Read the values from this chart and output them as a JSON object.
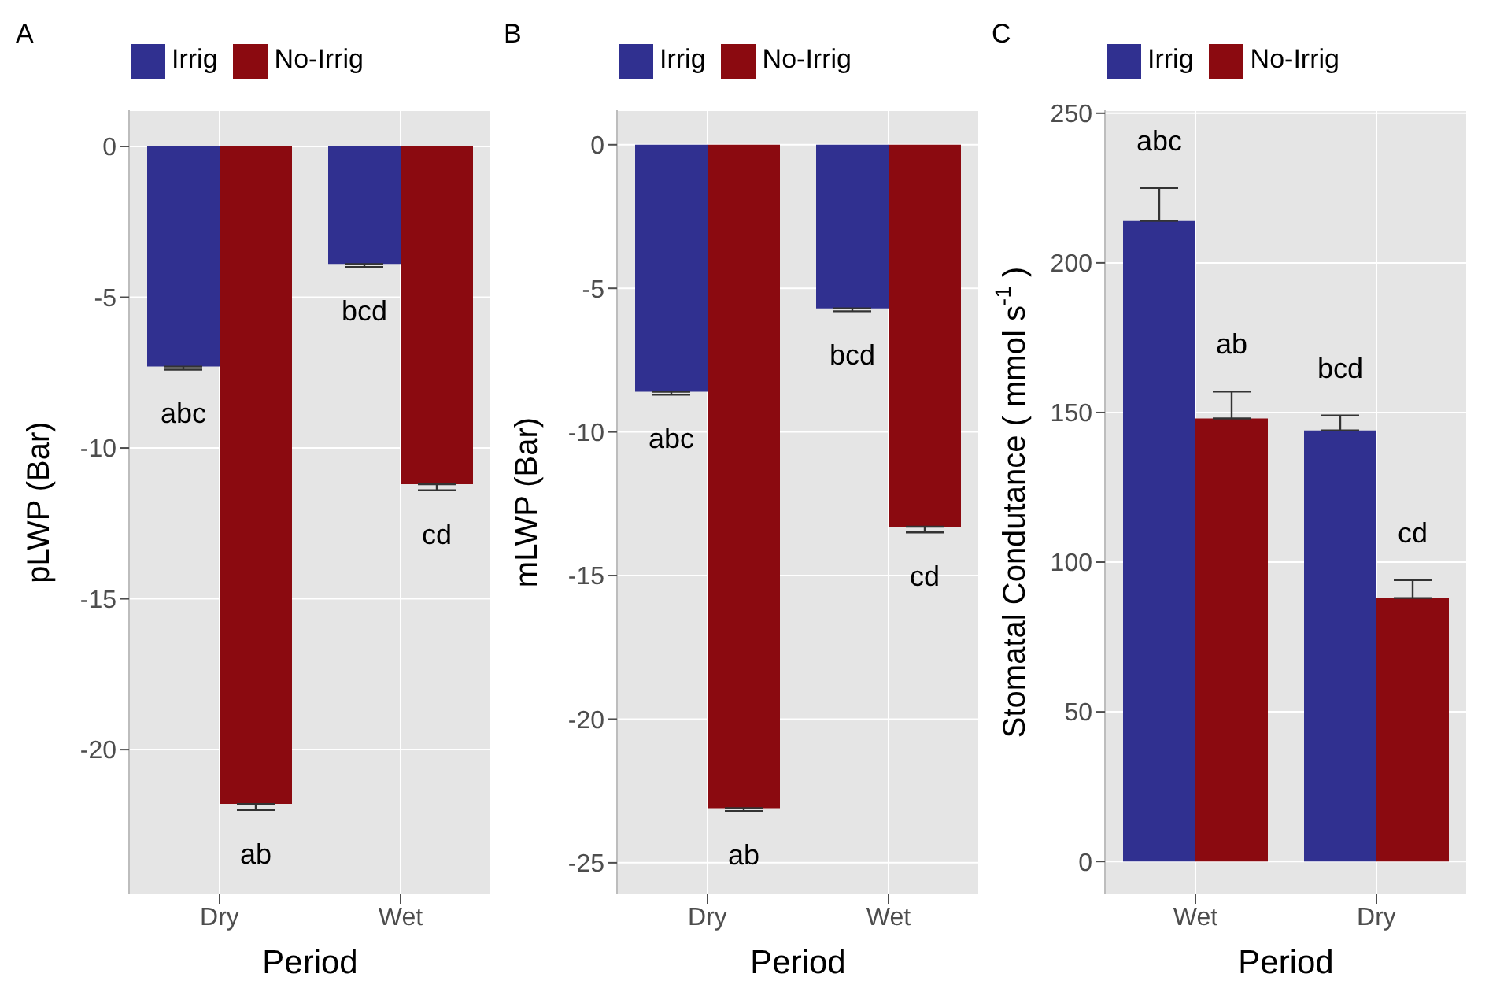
{
  "chart_data": [
    {
      "type": "bar",
      "title": "A",
      "categories": [
        "Dry",
        "Wet"
      ],
      "xlabel": "Period",
      "ylabel": "pLWP (Bar)",
      "ylim": [
        -24.8,
        1.2
      ],
      "yticks": [
        0,
        -5,
        -10,
        -15,
        -20
      ],
      "grid": true,
      "legend": "top",
      "series": [
        {
          "name": "Irrig",
          "color": "#303090",
          "values": [
            -7.3,
            -3.9
          ],
          "errors": [
            [
              -7.4,
              -7.3
            ],
            [
              -4.0,
              -3.9
            ]
          ],
          "value_labels": [
            "abc",
            "bcd"
          ]
        },
        {
          "name": "No-Irrig",
          "color": "#8b0a10",
          "values": [
            -21.8,
            -11.2
          ],
          "errors": [
            [
              -22.0,
              -21.8
            ],
            [
              -11.4,
              -11.2
            ]
          ],
          "value_labels": [
            "ab",
            "cd"
          ]
        }
      ]
    },
    {
      "type": "bar",
      "title": "B",
      "categories": [
        "Dry",
        "Wet"
      ],
      "xlabel": "Period",
      "ylabel": "mLWP (Bar)",
      "ylim": [
        -26.1,
        1.2
      ],
      "yticks": [
        0,
        -5,
        -10,
        -15,
        -20,
        -25
      ],
      "grid": true,
      "legend": "top",
      "series": [
        {
          "name": "Irrig",
          "color": "#303090",
          "values": [
            -8.6,
            -5.7
          ],
          "errors": [
            [
              -8.7,
              -8.6
            ],
            [
              -5.8,
              -5.7
            ]
          ],
          "value_labels": [
            "abc",
            "bcd"
          ]
        },
        {
          "name": "No-Irrig",
          "color": "#8b0a10",
          "values": [
            -23.1,
            -13.3
          ],
          "errors": [
            [
              -23.2,
              -23.1
            ],
            [
              -13.5,
              -13.3
            ]
          ],
          "value_labels": [
            "ab",
            "cd"
          ]
        }
      ]
    },
    {
      "type": "bar",
      "title": "C",
      "categories": [
        "Wet",
        "Dry"
      ],
      "xlabel": "Period",
      "ylabel": "Stomatal Condutance ( mmol s$^{-1}$ )",
      "ylim": [
        -11,
        251
      ],
      "yticks": [
        0,
        50,
        100,
        150,
        200,
        250
      ],
      "grid": true,
      "legend": "top",
      "series": [
        {
          "name": "Irrig",
          "color": "#303090",
          "values": [
            214,
            144
          ],
          "errors": [
            [
              214,
              225
            ],
            [
              144,
              149
            ]
          ],
          "value_labels": [
            "abc",
            "bcd"
          ]
        },
        {
          "name": "No-Irrig",
          "color": "#8b0a10",
          "values": [
            148,
            88
          ],
          "errors": [
            [
              148,
              157
            ],
            [
              88,
              94
            ]
          ],
          "value_labels": [
            "ab",
            "cd"
          ]
        }
      ]
    }
  ]
}
